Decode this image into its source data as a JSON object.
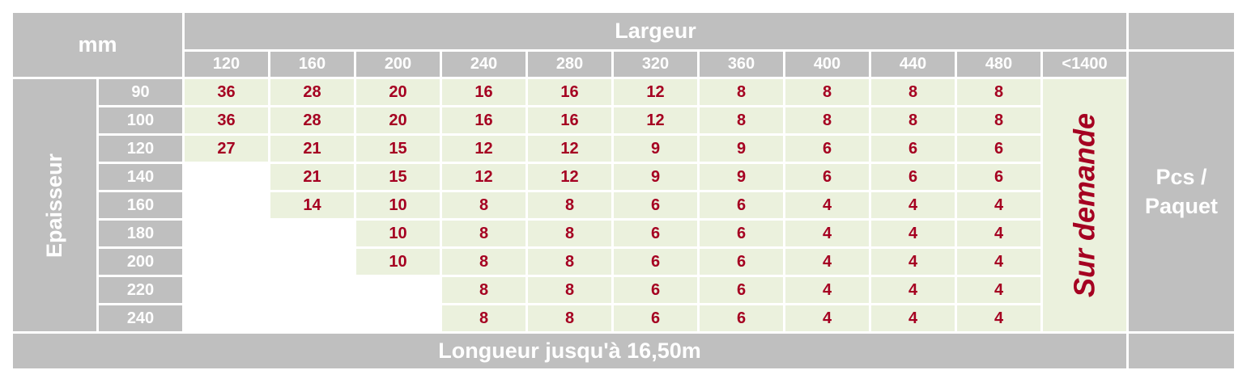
{
  "corner_label": "mm",
  "largeur_label": "Largeur",
  "epaisseur_label": "Epaisseur",
  "longueur_label": "Longueur jusqu'à 16,50m",
  "sur_demande_label": "Sur demande",
  "pcs_label": "Pcs / Paquet",
  "widths": [
    "120",
    "160",
    "200",
    "240",
    "280",
    "320",
    "360",
    "400",
    "440",
    "480"
  ],
  "wide_width": "<1400",
  "rows": [
    {
      "thickness": "90",
      "cells": [
        "36",
        "28",
        "20",
        "16",
        "16",
        "12",
        "8",
        "8",
        "8",
        "8"
      ]
    },
    {
      "thickness": "100",
      "cells": [
        "36",
        "28",
        "20",
        "16",
        "16",
        "12",
        "8",
        "8",
        "8",
        "8"
      ]
    },
    {
      "thickness": "120",
      "cells": [
        "27",
        "21",
        "15",
        "12",
        "12",
        "9",
        "9",
        "6",
        "6",
        "6"
      ]
    },
    {
      "thickness": "140",
      "cells": [
        "",
        "21",
        "15",
        "12",
        "12",
        "9",
        "9",
        "6",
        "6",
        "6"
      ]
    },
    {
      "thickness": "160",
      "cells": [
        "",
        "14",
        "10",
        "8",
        "8",
        "6",
        "6",
        "4",
        "4",
        "4"
      ]
    },
    {
      "thickness": "180",
      "cells": [
        "",
        "",
        "10",
        "8",
        "8",
        "6",
        "6",
        "4",
        "4",
        "4"
      ]
    },
    {
      "thickness": "200",
      "cells": [
        "",
        "",
        "10",
        "8",
        "8",
        "6",
        "6",
        "4",
        "4",
        "4"
      ]
    },
    {
      "thickness": "220",
      "cells": [
        "",
        "",
        "",
        "8",
        "8",
        "6",
        "6",
        "4",
        "4",
        "4"
      ]
    },
    {
      "thickness": "240",
      "cells": [
        "",
        "",
        "",
        "8",
        "8",
        "6",
        "6",
        "4",
        "4",
        "4"
      ]
    }
  ],
  "colors": {
    "header_gray": "#bfbfbf",
    "cell_green": "#ebf1dd",
    "value_red": "#a50021"
  }
}
